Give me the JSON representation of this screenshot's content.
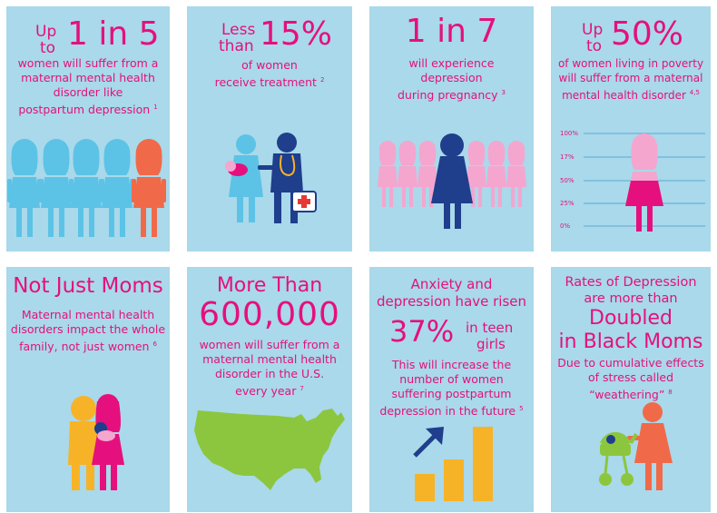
{
  "cards": {
    "c1": {
      "lead": "Up",
      "lead2": "to",
      "stat": "1 in 5",
      "lines": [
        "women will suffer from a",
        "maternal mental health",
        "disorder like",
        "postpartum depression"
      ],
      "ref": "1"
    },
    "c2": {
      "lead": "Less",
      "lead2": "than",
      "stat": "15%",
      "lines": [
        "of women",
        "receive treatment"
      ],
      "ref": "2"
    },
    "c3": {
      "stat": "1 in 7",
      "lines": [
        "will experience",
        "depression",
        "during pregnancy"
      ],
      "ref": "3"
    },
    "c4": {
      "lead": "Up",
      "lead2": "to",
      "stat": "50%",
      "lines": [
        "of women living in poverty",
        "will suffer from a maternal",
        "mental health disorder"
      ],
      "ref": "4,5",
      "axis": [
        "100%",
        "17%",
        "50%",
        "25%",
        "0%"
      ]
    },
    "c5": {
      "title": "Not Just Moms",
      "lines": [
        "Maternal mental health",
        "disorders impact the whole",
        "family, not just women"
      ],
      "ref": "6"
    },
    "c6": {
      "lead": "More Than",
      "stat": "600,000",
      "lines": [
        "women will suffer from a",
        "maternal mental health",
        "disorder in the U.S.",
        "every year"
      ],
      "ref": "7"
    },
    "c7": {
      "title_lines": [
        "Anxiety and",
        "depression have risen"
      ],
      "stat": "37%",
      "stat_side": [
        "in teen",
        "girls"
      ],
      "lines": [
        "This will increase the",
        "number of women",
        "suffering postpartum",
        "depression in the future"
      ],
      "ref": "5"
    },
    "c8": {
      "title_lines": [
        "Rates of Depression",
        "are more than"
      ],
      "big_lines": [
        "Doubled",
        "in Black Moms"
      ],
      "lines": [
        "Due to cumulative effects",
        "of stress called",
        "“weathering”"
      ],
      "ref": "8"
    }
  },
  "colors": {
    "card_bg": "#a9d9ea",
    "magenta": "#e5107d",
    "light_pink": "#f4a6cf",
    "light_blue": "#5cc3e6",
    "navy": "#1f3e8c",
    "orange": "#f06a4a",
    "yellow": "#f7b328",
    "green": "#8cc63f"
  }
}
